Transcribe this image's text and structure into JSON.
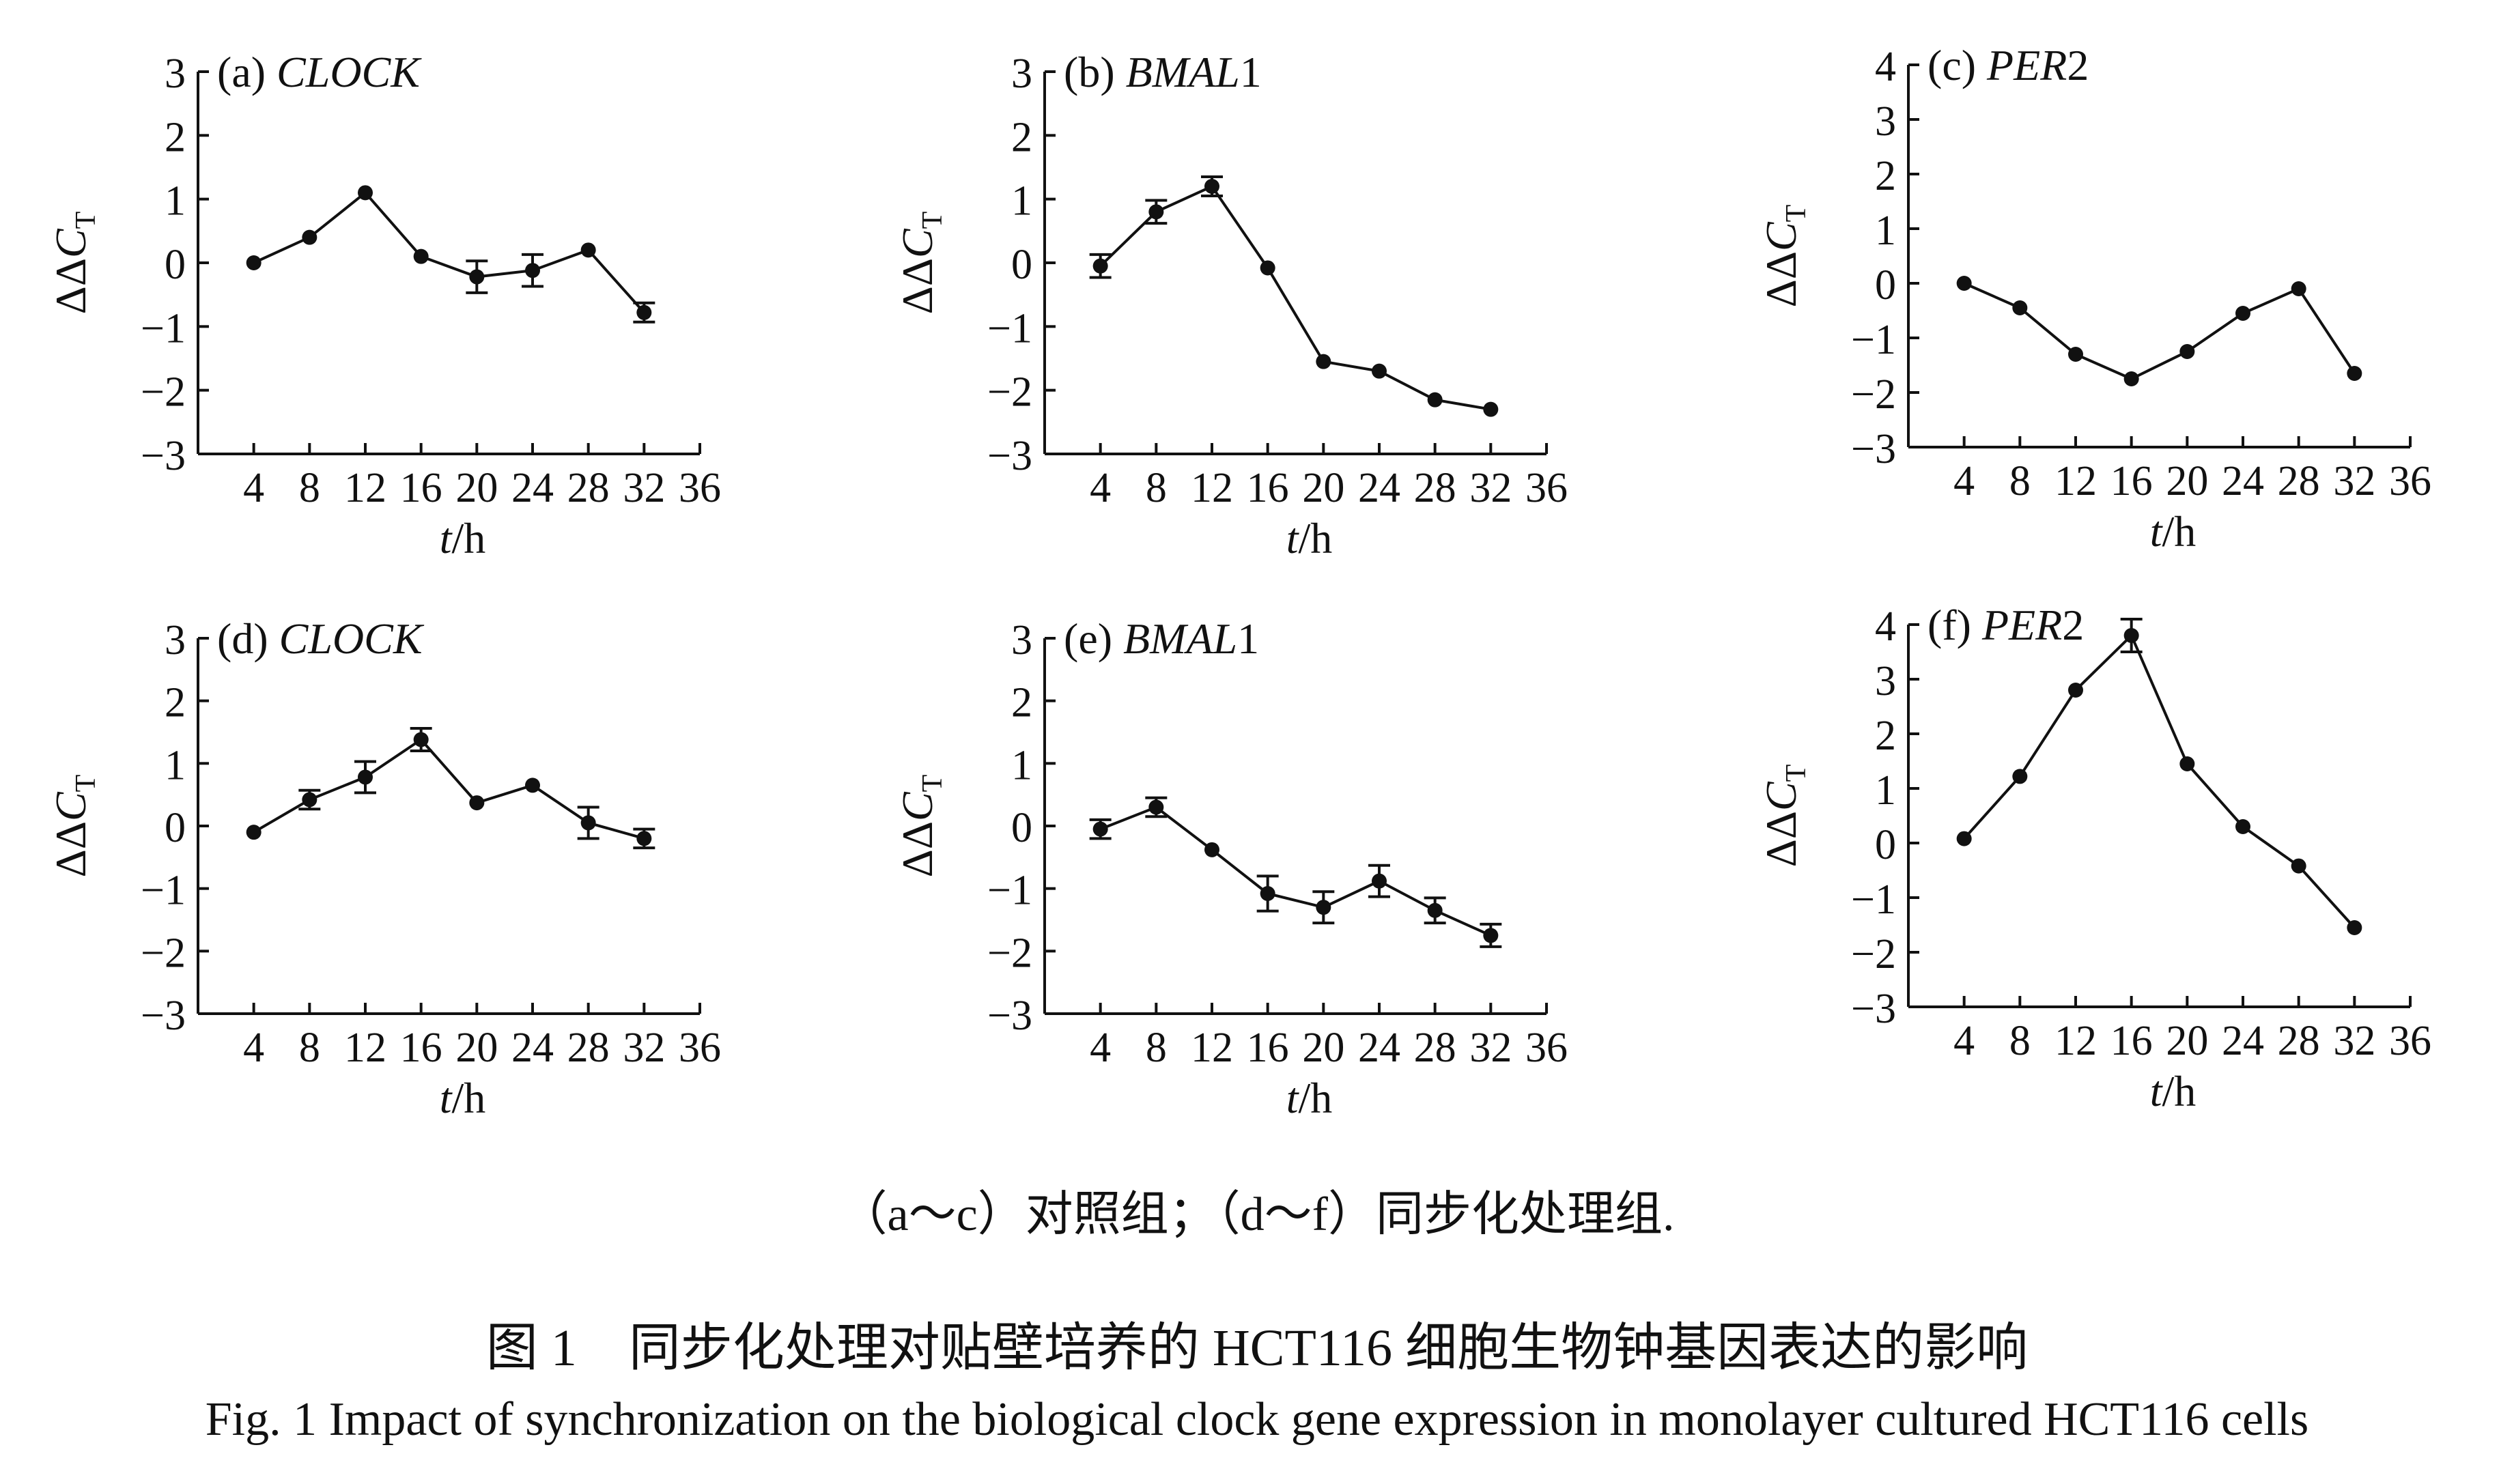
{
  "chart_data": [
    {
      "type": "line",
      "panel_label": "(a)",
      "gene": "CLOCK",
      "gene_italic": "CLOCK",
      "gene_suffix": "",
      "xlabel": {
        "var": "t",
        "unit": "/h"
      },
      "ylabel": {
        "base": "ΔΔC",
        "sub": "T"
      },
      "x_ticks": [
        4,
        8,
        12,
        16,
        20,
        24,
        28,
        32,
        36
      ],
      "y_ticks": [
        -3,
        -2,
        -1,
        0,
        1,
        2,
        3
      ],
      "xlim": [
        0,
        36
      ],
      "ylim": [
        -3,
        3
      ],
      "x": [
        4,
        8,
        12,
        16,
        20,
        24,
        28,
        32
      ],
      "y": [
        0,
        0.4,
        1.1,
        0.1,
        -0.22,
        -0.12,
        0.2,
        -0.78
      ],
      "err": [
        0,
        0,
        0,
        0,
        0.25,
        0.25,
        0,
        0.15
      ]
    },
    {
      "type": "line",
      "panel_label": "(b)",
      "gene": "BMAL1",
      "gene_italic": "BMAL",
      "gene_suffix": "1",
      "xlabel": {
        "var": "t",
        "unit": "/h"
      },
      "ylabel": {
        "base": "ΔΔC",
        "sub": "T"
      },
      "x_ticks": [
        4,
        8,
        12,
        16,
        20,
        24,
        28,
        32,
        36
      ],
      "y_ticks": [
        -3,
        -2,
        -1,
        0,
        1,
        2,
        3
      ],
      "xlim": [
        0,
        36
      ],
      "ylim": [
        -3,
        3
      ],
      "x": [
        4,
        8,
        12,
        16,
        20,
        24,
        28,
        32
      ],
      "y": [
        -0.05,
        0.8,
        1.2,
        -0.08,
        -1.55,
        -1.7,
        -2.15,
        -2.3
      ],
      "err": [
        0.18,
        0.18,
        0.15,
        0,
        0,
        0,
        0,
        0
      ]
    },
    {
      "type": "line",
      "panel_label": "(c)",
      "gene": "PER2",
      "gene_italic": "PER",
      "gene_suffix": "2",
      "xlabel": {
        "var": "t",
        "unit": "/h"
      },
      "ylabel": {
        "base": "ΔΔC",
        "sub": "T"
      },
      "x_ticks": [
        4,
        8,
        12,
        16,
        20,
        24,
        28,
        32,
        36
      ],
      "y_ticks": [
        -3,
        -2,
        -1,
        0,
        1,
        2,
        3,
        4
      ],
      "xlim": [
        0,
        36
      ],
      "ylim": [
        -3,
        4
      ],
      "x": [
        4,
        8,
        12,
        16,
        20,
        24,
        28,
        32
      ],
      "y": [
        0,
        -0.45,
        -1.3,
        -1.75,
        -1.25,
        -0.55,
        -0.1,
        -1.65
      ],
      "err": [
        0,
        0,
        0,
        0,
        0,
        0,
        0,
        0
      ]
    },
    {
      "type": "line",
      "panel_label": "(d)",
      "gene": "CLOCK",
      "gene_italic": "CLOCK",
      "gene_suffix": "",
      "xlabel": {
        "var": "t",
        "unit": "/h"
      },
      "ylabel": {
        "base": "ΔΔC",
        "sub": "T"
      },
      "x_ticks": [
        4,
        8,
        12,
        16,
        20,
        24,
        28,
        32,
        36
      ],
      "y_ticks": [
        -3,
        -2,
        -1,
        0,
        1,
        2,
        3
      ],
      "xlim": [
        0,
        36
      ],
      "ylim": [
        -3,
        3
      ],
      "x": [
        4,
        8,
        12,
        16,
        20,
        24,
        28,
        32
      ],
      "y": [
        -0.1,
        0.42,
        0.78,
        1.38,
        0.37,
        0.65,
        0.05,
        -0.2
      ],
      "err": [
        0,
        0.15,
        0.25,
        0.18,
        0,
        0,
        0.25,
        0.15
      ]
    },
    {
      "type": "line",
      "panel_label": "(e)",
      "gene": "BMAL1",
      "gene_italic": "BMAL",
      "gene_suffix": "1",
      "xlabel": {
        "var": "t",
        "unit": "/h"
      },
      "ylabel": {
        "base": "ΔΔC",
        "sub": "T"
      },
      "x_ticks": [
        4,
        8,
        12,
        16,
        20,
        24,
        28,
        32,
        36
      ],
      "y_ticks": [
        -3,
        -2,
        -1,
        0,
        1,
        2,
        3
      ],
      "xlim": [
        0,
        36
      ],
      "ylim": [
        -3,
        3
      ],
      "x": [
        4,
        8,
        12,
        16,
        20,
        24,
        28,
        32
      ],
      "y": [
        -0.05,
        0.3,
        -0.38,
        -1.08,
        -1.3,
        -0.88,
        -1.35,
        -1.75
      ],
      "err": [
        0.15,
        0.15,
        0,
        0.28,
        0.25,
        0.25,
        0.2,
        0.18
      ]
    },
    {
      "type": "line",
      "panel_label": "(f)",
      "gene": "PER2",
      "gene_italic": "PER",
      "gene_suffix": "2",
      "xlabel": {
        "var": "t",
        "unit": "/h"
      },
      "ylabel": {
        "base": "ΔΔC",
        "sub": "T"
      },
      "x_ticks": [
        4,
        8,
        12,
        16,
        20,
        24,
        28,
        32,
        36
      ],
      "y_ticks": [
        -3,
        -2,
        -1,
        0,
        1,
        2,
        3,
        4
      ],
      "xlim": [
        0,
        36
      ],
      "ylim": [
        -3,
        4
      ],
      "x": [
        4,
        8,
        12,
        16,
        20,
        24,
        28,
        32
      ],
      "y": [
        0.08,
        1.22,
        2.8,
        3.8,
        1.45,
        0.3,
        -0.42,
        -1.55
      ],
      "err": [
        0,
        0,
        0,
        0.3,
        0,
        0,
        0,
        0
      ]
    }
  ],
  "note": "（a～c）对照组；（d～f）同步化处理组.",
  "caption_cn": "图 1　同步化处理对贴壁培养的 HCT116 细胞生物钟基因表达的影响",
  "caption_en": "Fig. 1  Impact of synchronization on the biological clock gene expression in monolayer cultured HCT116 cells"
}
